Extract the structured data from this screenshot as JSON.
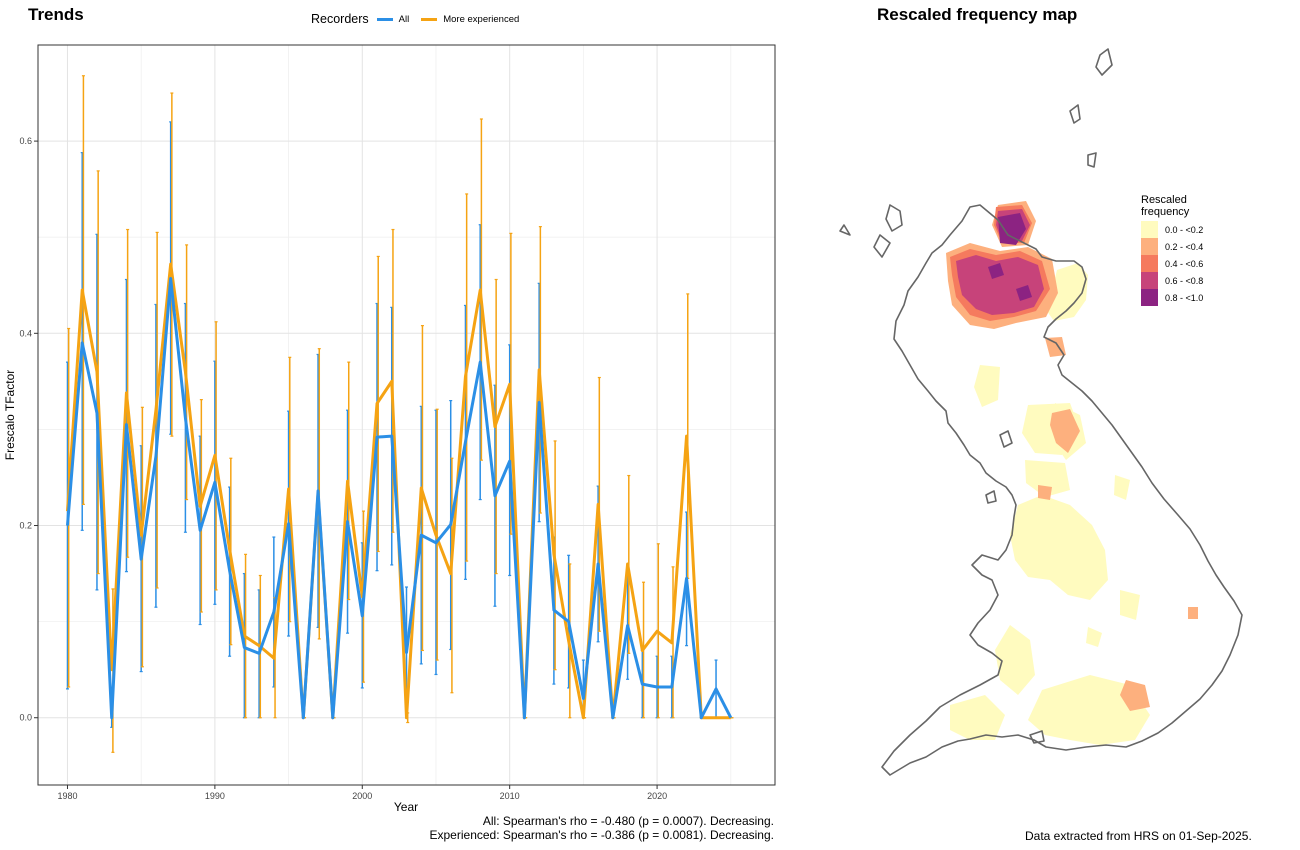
{
  "trends_panel": {
    "title": "Trends",
    "legend_title": "Recorders",
    "stats_lines": [
      "All: Spearman's rho = -0.480 (p = 0.0007). Decreasing.",
      "Experienced: Spearman's rho = -0.386 (p = 0.0081). Decreasing."
    ]
  },
  "map_panel": {
    "title": "Rescaled frequency map",
    "legend_title_line1": "Rescaled",
    "legend_title_line2": "frequency",
    "legend": [
      {
        "label": "0.0 - <0.2",
        "color": "#fffbbf"
      },
      {
        "label": "0.2 - <0.4",
        "color": "#fdb07e"
      },
      {
        "label": "0.4 - <0.6",
        "color": "#f57a5e"
      },
      {
        "label": "0.6 - <0.8",
        "color": "#c7437a"
      },
      {
        "label": "0.8 - <1.0",
        "color": "#8c2382"
      }
    ],
    "footer": "Data extracted from HRS on 01-Sep-2025."
  },
  "chart_data": {
    "type": "line",
    "xlabel": "Year",
    "ylabel": "Frescalo TFactor",
    "xlim": [
      1978,
      2028
    ],
    "ylim": [
      -0.07,
      0.7
    ],
    "xticks": [
      1980,
      1990,
      2000,
      2010,
      2020
    ],
    "yticks": [
      0.0,
      0.2,
      0.4,
      0.6
    ],
    "ytick_labels": [
      "0.0",
      "0.2",
      "0.4",
      "0.6"
    ],
    "grid": true,
    "legend_position": "top",
    "series": [
      {
        "name": "All",
        "color": "#2b8fe6",
        "points": [
          [
            1980,
            0.2,
            0.03,
            0.37
          ],
          [
            1981,
            0.39,
            0.195,
            0.588
          ],
          [
            1982,
            0.317,
            0.133,
            0.503
          ],
          [
            1983,
            0.0,
            -0.01,
            0.01
          ],
          [
            1984,
            0.305,
            0.152,
            0.456
          ],
          [
            1985,
            0.165,
            0.048,
            0.283
          ],
          [
            1986,
            0.272,
            0.115,
            0.43
          ],
          [
            1987,
            0.457,
            0.295,
            0.62
          ],
          [
            1988,
            0.312,
            0.193,
            0.431
          ],
          [
            1989,
            0.195,
            0.097,
            0.293
          ],
          [
            1990,
            0.245,
            0.118,
            0.371
          ],
          [
            1991,
            0.153,
            0.064,
            0.24
          ],
          [
            1992,
            0.073,
            0.0,
            0.15
          ],
          [
            1993,
            0.067,
            0.0,
            0.133
          ],
          [
            1994,
            0.11,
            0.032,
            0.188
          ],
          [
            1995,
            0.202,
            0.085,
            0.319
          ],
          [
            1996,
            0.0,
            0.0,
            0.0
          ],
          [
            1997,
            0.236,
            0.094,
            0.378
          ],
          [
            1998,
            0.0,
            0.0,
            0.0
          ],
          [
            1999,
            0.204,
            0.088,
            0.32
          ],
          [
            2000,
            0.106,
            0.031,
            0.182
          ],
          [
            2001,
            0.292,
            0.153,
            0.431
          ],
          [
            2002,
            0.293,
            0.159,
            0.427
          ],
          [
            2003,
            0.068,
            0.0,
            0.136
          ],
          [
            2004,
            0.19,
            0.056,
            0.324
          ],
          [
            2005,
            0.182,
            0.045,
            0.32
          ],
          [
            2006,
            0.201,
            0.071,
            0.33
          ],
          [
            2007,
            0.287,
            0.144,
            0.429
          ],
          [
            2008,
            0.37,
            0.227,
            0.513
          ],
          [
            2009,
            0.231,
            0.116,
            0.346
          ],
          [
            2010,
            0.267,
            0.148,
            0.388
          ],
          [
            2011,
            0.0,
            0.0,
            0.0
          ],
          [
            2012,
            0.328,
            0.204,
            0.452
          ],
          [
            2013,
            0.112,
            0.035,
            0.188
          ],
          [
            2014,
            0.1,
            0.031,
            0.169
          ],
          [
            2015,
            0.02,
            0.0,
            0.06
          ],
          [
            2016,
            0.16,
            0.079,
            0.241
          ],
          [
            2017,
            0.0,
            0.0,
            0.0
          ],
          [
            2018,
            0.096,
            0.04,
            0.152
          ],
          [
            2019,
            0.035,
            0.0,
            0.07
          ],
          [
            2020,
            0.032,
            0.0,
            0.064
          ],
          [
            2021,
            0.032,
            0.0,
            0.064
          ],
          [
            2022,
            0.145,
            0.075,
            0.214
          ],
          [
            2023,
            0.0,
            0.0,
            0.0
          ],
          [
            2024,
            0.03,
            0.0,
            0.06
          ],
          [
            2025,
            0.0,
            0.0,
            0.0
          ]
        ]
      },
      {
        "name": "More experienced",
        "color": "#f5a313",
        "points": [
          [
            1980,
            0.215,
            0.032,
            0.405
          ],
          [
            1981,
            0.445,
            0.222,
            0.668
          ],
          [
            1982,
            0.36,
            0.15,
            0.569
          ],
          [
            1983,
            0.05,
            -0.036,
            0.134
          ],
          [
            1984,
            0.338,
            0.167,
            0.508
          ],
          [
            1985,
            0.19,
            0.053,
            0.323
          ],
          [
            1986,
            0.32,
            0.135,
            0.505
          ],
          [
            1987,
            0.472,
            0.293,
            0.65
          ],
          [
            1988,
            0.36,
            0.227,
            0.492
          ],
          [
            1989,
            0.22,
            0.11,
            0.331
          ],
          [
            1990,
            0.273,
            0.133,
            0.412
          ],
          [
            1991,
            0.175,
            0.076,
            0.27
          ],
          [
            1992,
            0.085,
            0.0,
            0.17
          ],
          [
            1993,
            0.075,
            0.0,
            0.148
          ],
          [
            1994,
            0.062,
            0.0,
            0.125
          ],
          [
            1995,
            0.238,
            0.1,
            0.375
          ],
          [
            1996,
            0.0,
            0.0,
            0.0
          ],
          [
            1997,
            0.233,
            0.082,
            0.384
          ],
          [
            1998,
            0.0,
            0.0,
            0.0
          ],
          [
            1999,
            0.246,
            0.123,
            0.37
          ],
          [
            2000,
            0.126,
            0.037,
            0.215
          ],
          [
            2001,
            0.327,
            0.173,
            0.48
          ],
          [
            2002,
            0.35,
            0.193,
            0.508
          ],
          [
            2003,
            0.0,
            -0.005,
            0.005
          ],
          [
            2004,
            0.239,
            0.07,
            0.408
          ],
          [
            2005,
            0.19,
            0.06,
            0.321
          ],
          [
            2006,
            0.15,
            0.026,
            0.27
          ],
          [
            2007,
            0.355,
            0.163,
            0.545
          ],
          [
            2008,
            0.445,
            0.268,
            0.623
          ],
          [
            2009,
            0.303,
            0.15,
            0.456
          ],
          [
            2010,
            0.347,
            0.191,
            0.504
          ],
          [
            2011,
            0.0,
            0.0,
            0.0
          ],
          [
            2012,
            0.362,
            0.213,
            0.511
          ],
          [
            2013,
            0.17,
            0.05,
            0.288
          ],
          [
            2014,
            0.08,
            0.0,
            0.16
          ],
          [
            2015,
            0.0,
            0.0,
            0.0
          ],
          [
            2016,
            0.222,
            0.09,
            0.354
          ],
          [
            2017,
            0.0,
            0.0,
            0.0
          ],
          [
            2018,
            0.16,
            0.067,
            0.252
          ],
          [
            2019,
            0.07,
            0.0,
            0.141
          ],
          [
            2020,
            0.09,
            0.0,
            0.181
          ],
          [
            2021,
            0.078,
            0.0,
            0.157
          ],
          [
            2022,
            0.293,
            0.145,
            0.441
          ],
          [
            2023,
            0.0,
            0.0,
            0.0
          ],
          [
            2024,
            0.0,
            0.0,
            0.0
          ],
          [
            2025,
            0.0,
            0.0,
            0.0
          ]
        ]
      }
    ]
  }
}
